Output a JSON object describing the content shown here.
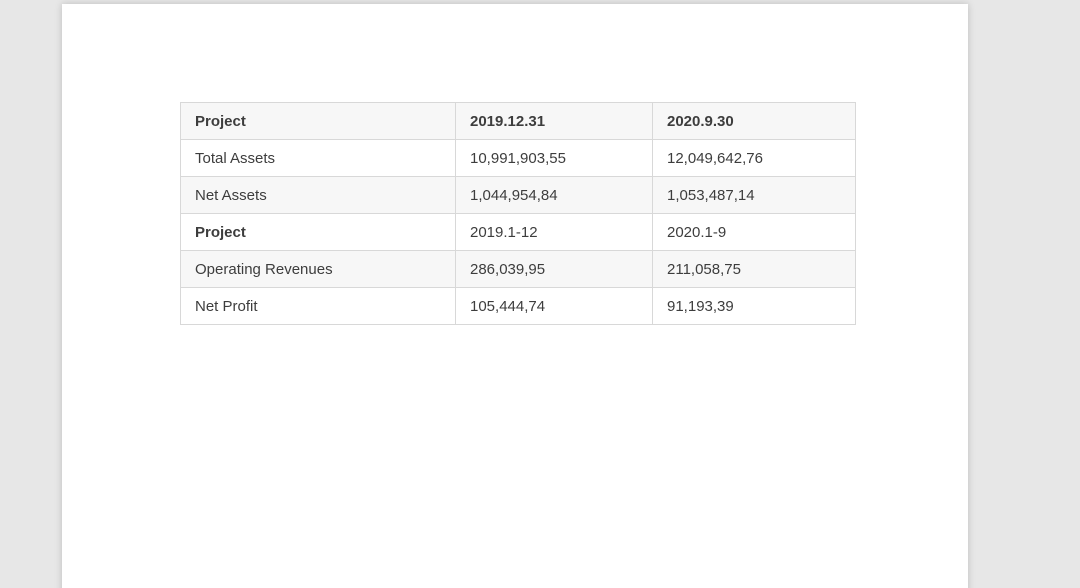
{
  "page": {
    "backdrop_color": "#e7e7e7",
    "sheet_color": "#ffffff",
    "stripe_color": "#f7f7f7",
    "border_color": "#d8d8d8",
    "text_color": "#3d3d3d"
  },
  "table": {
    "headers": [
      "Project",
      "2019.12.31",
      "2020.9.30"
    ],
    "rows": [
      {
        "cells": [
          "Total Assets",
          "10,991,903,55",
          "12,049,642,76"
        ]
      },
      {
        "cells": [
          "Net Assets",
          "1,044,954,84",
          "1,053,487,14"
        ]
      },
      {
        "cells": [
          "Project",
          "2019.1-12",
          "2020.1-9"
        ]
      },
      {
        "cells": [
          "Operating Revenues",
          "286,039,95",
          "211,058,75"
        ]
      },
      {
        "cells": [
          "Net Profit",
          "105,444,74",
          "91,193,39"
        ]
      }
    ]
  }
}
